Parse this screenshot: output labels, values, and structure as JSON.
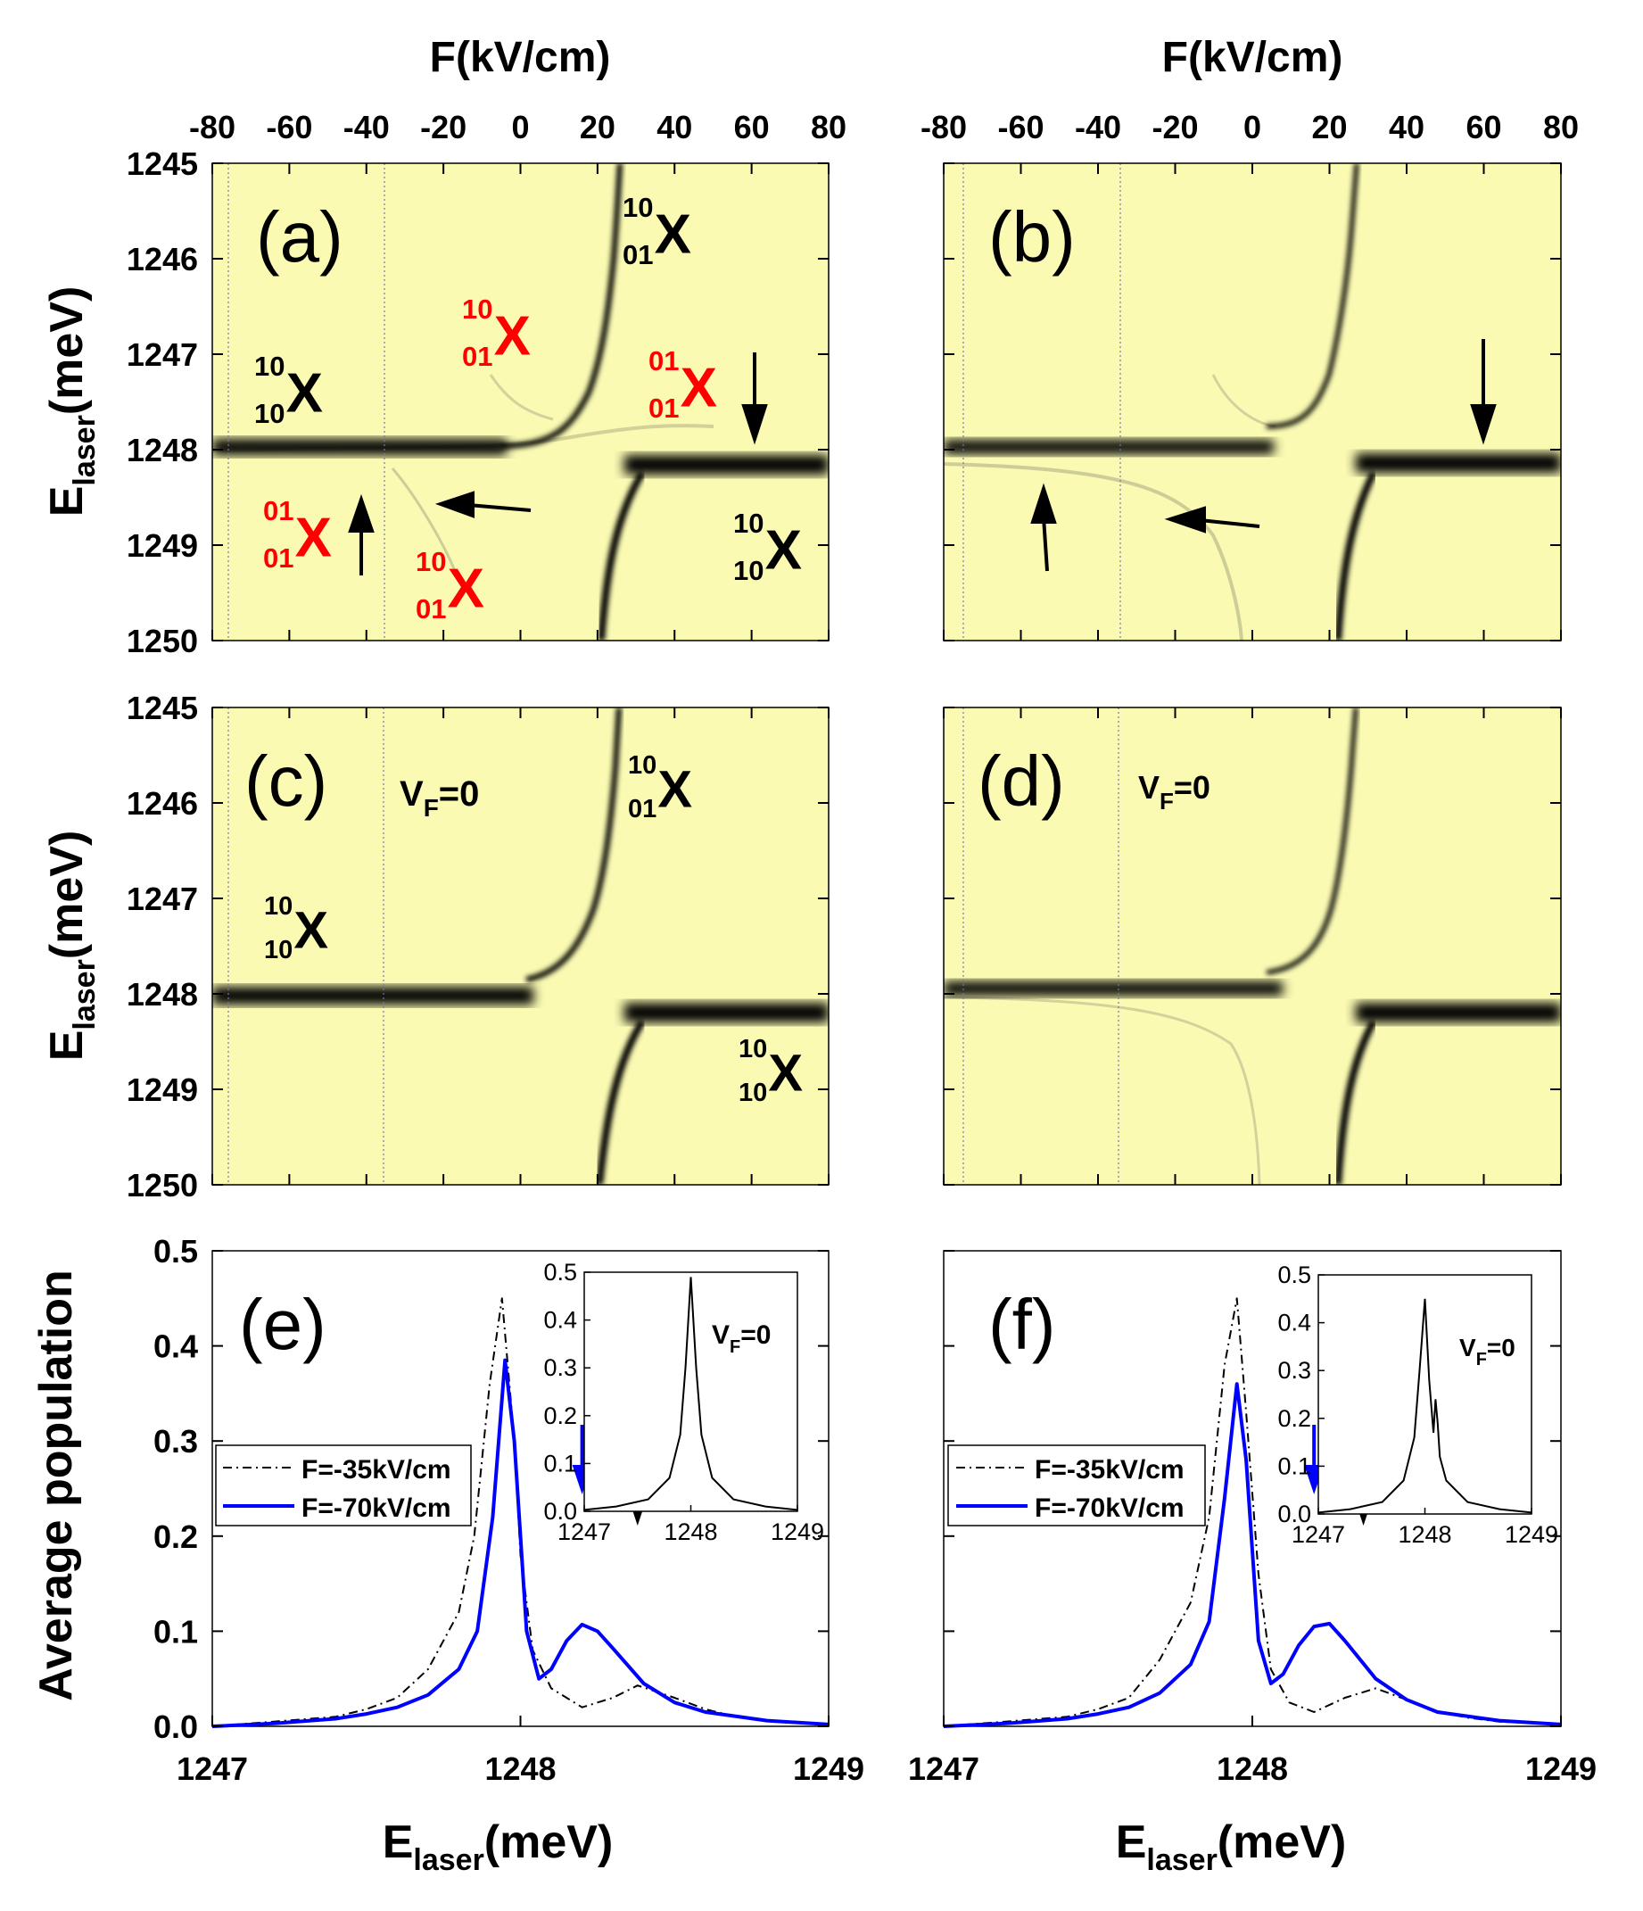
{
  "figure_kind": "multi-panel scientific figure",
  "colors": {
    "map_background": "#fafab3",
    "blue": "#0000ff",
    "black": "#000000",
    "red": "#ff0000"
  },
  "top_axis": {
    "title": "F(kV/cm)",
    "ticks": [
      "-80",
      "-60",
      "-40",
      "-20",
      "0",
      "20",
      "40",
      "60",
      "80"
    ]
  },
  "map_axis": {
    "ylabel_main": "E",
    "ylabel_sub": "laser",
    "ylabel_tail": "(meV)",
    "ticks": [
      "1245",
      "1246",
      "1247",
      "1248",
      "1249",
      "1250"
    ]
  },
  "population_axis": {
    "ylabel": "Average population",
    "y_ticks": [
      "0.0",
      "0.1",
      "0.2",
      "0.3",
      "0.4",
      "0.5"
    ],
    "x_ticks": [
      "1247",
      "1248",
      "1249"
    ],
    "xlabel_main": "E",
    "xlabel_sub": "laser",
    "xlabel_tail": "(meV)"
  },
  "panels": {
    "a": {
      "label": "(a)"
    },
    "b": {
      "label": "(b)"
    },
    "c": {
      "label": "(c)",
      "vf_main": "V",
      "vf_sub": "F",
      "vf_tail": "=0"
    },
    "d": {
      "label": "(d)",
      "vf_main": "V",
      "vf_sub": "F",
      "vf_tail": "=0"
    },
    "e": {
      "label": "(e)"
    },
    "f": {
      "label": "(f)"
    }
  },
  "state_labels": [
    {
      "panel": "a",
      "sup": "10",
      "sub": "01",
      "main": "X",
      "color": "black"
    },
    {
      "panel": "a",
      "sup": "10",
      "sub": "01",
      "main": "X",
      "color": "red"
    },
    {
      "panel": "a",
      "sup": "10",
      "sub": "10",
      "main": "X",
      "color": "black"
    },
    {
      "panel": "a",
      "sup": "01",
      "sub": "01",
      "main": "X",
      "color": "red"
    },
    {
      "panel": "a",
      "sup": "01",
      "sub": "01",
      "main": "X",
      "color": "red"
    },
    {
      "panel": "a",
      "sup": "10",
      "sub": "10",
      "main": "X",
      "color": "black"
    },
    {
      "panel": "a",
      "sup": "10",
      "sub": "01",
      "main": "X",
      "color": "red"
    },
    {
      "panel": "c",
      "sup": "10",
      "sub": "01",
      "main": "X",
      "color": "black"
    },
    {
      "panel": "c",
      "sup": "10",
      "sub": "10",
      "main": "X",
      "color": "black"
    },
    {
      "panel": "c",
      "sup": "10",
      "sub": "10",
      "main": "X",
      "color": "black"
    }
  ],
  "legend": {
    "series1": "F=-35kV/cm",
    "series2": "F=-70kV/cm"
  },
  "inset": {
    "vf_main": "V",
    "vf_sub": "F",
    "vf_tail": "=0",
    "y_ticks": [
      "0.0",
      "0.1",
      "0.2",
      "0.3",
      "0.4",
      "0.5"
    ],
    "x_ticks": [
      "1247",
      "1248",
      "1249"
    ]
  },
  "chart_data": [
    {
      "type": "heatmap",
      "panel": "(a)",
      "x_label": "F(kV/cm)",
      "x_range": [
        -80,
        80
      ],
      "y_label": "Elaser(meV)",
      "y_range": [
        1245,
        1250
      ],
      "y_inverted": true,
      "features": [
        {
          "name": "10/10 X horizontal branch",
          "from_F": -80,
          "to_F": 0,
          "E_meV": 1248.0
        },
        {
          "name": "10/10 X right branch",
          "from_F": 22,
          "to_F": 80,
          "E_meV": 1248.2
        },
        {
          "name": "10/01 X anticrossing branch",
          "crossing_F": 18,
          "E_meV_at_crossing": 1248.0
        }
      ],
      "arrows": [
        {
          "F": 60,
          "E_meV": 1247.7,
          "direction": "down"
        },
        {
          "F": -42,
          "E_meV": 1249.0,
          "direction": "up"
        },
        {
          "F": -15,
          "E_meV": 1248.6,
          "direction": "left"
        }
      ]
    },
    {
      "type": "heatmap",
      "panel": "(b)",
      "x_label": "F(kV/cm)",
      "x_range": [
        -80,
        80
      ],
      "y_label": "Elaser(meV)",
      "y_range": [
        1245,
        1250
      ],
      "y_inverted": true,
      "features": [
        {
          "name": "horizontal branch",
          "from_F": -80,
          "to_F": 0,
          "E_meV": 1248.0
        },
        {
          "name": "right branch",
          "from_F": 22,
          "to_F": 80,
          "E_meV": 1248.2
        }
      ],
      "arrows": [
        {
          "F": 60,
          "E_meV": 1247.6,
          "direction": "down"
        },
        {
          "F": -54,
          "E_meV": 1249.0,
          "direction": "up"
        },
        {
          "F": -12,
          "E_meV": 1248.6,
          "direction": "left"
        }
      ]
    },
    {
      "type": "heatmap",
      "panel": "(c)",
      "x_label": "F(kV/cm)",
      "x_range": [
        -80,
        80
      ],
      "y_label": "Elaser(meV)",
      "y_range": [
        1245,
        1250
      ],
      "y_inverted": true,
      "features": [
        {
          "name": "horizontal branch",
          "from_F": -80,
          "to_F": 0,
          "E_meV": 1248.0
        },
        {
          "name": "right branch",
          "from_F": 22,
          "to_F": 80,
          "E_meV": 1248.2
        }
      ]
    },
    {
      "type": "heatmap",
      "panel": "(d)",
      "x_label": "F(kV/cm)",
      "x_range": [
        -80,
        80
      ],
      "y_label": "Elaser(meV)",
      "y_range": [
        1245,
        1250
      ],
      "y_inverted": true,
      "features": [
        {
          "name": "horizontal branch",
          "from_F": -80,
          "to_F": 0,
          "E_meV": 1248.0
        },
        {
          "name": "right branch",
          "from_F": 22,
          "to_F": 80,
          "E_meV": 1248.2
        }
      ]
    },
    {
      "type": "line",
      "panel": "(e)",
      "xlabel": "Elaser(meV)",
      "ylabel": "Average population",
      "xlim": [
        1247,
        1249
      ],
      "ylim": [
        0,
        0.5
      ],
      "series": [
        {
          "name": "F=-35kV/cm",
          "style": "dash-dot",
          "color": "#000000",
          "x": [
            1247.0,
            1247.2,
            1247.4,
            1247.5,
            1247.6,
            1247.7,
            1247.8,
            1247.85,
            1247.9,
            1247.94,
            1247.98,
            1248.0,
            1248.04,
            1248.1,
            1248.2,
            1248.3,
            1248.38,
            1248.5,
            1248.6,
            1248.7,
            1248.8,
            1249.0
          ],
          "y": [
            0.0,
            0.005,
            0.01,
            0.018,
            0.03,
            0.06,
            0.12,
            0.2,
            0.36,
            0.45,
            0.3,
            0.18,
            0.08,
            0.04,
            0.02,
            0.03,
            0.043,
            0.03,
            0.018,
            0.01,
            0.006,
            0.002
          ]
        },
        {
          "name": "F=-70kV/cm",
          "style": "solid",
          "color": "#0000ff",
          "x": [
            1247.0,
            1247.2,
            1247.4,
            1247.5,
            1247.6,
            1247.7,
            1247.8,
            1247.86,
            1247.91,
            1247.95,
            1247.98,
            1248.02,
            1248.06,
            1248.1,
            1248.15,
            1248.2,
            1248.25,
            1248.3,
            1248.4,
            1248.5,
            1248.6,
            1248.8,
            1249.0
          ],
          "y": [
            0.0,
            0.003,
            0.008,
            0.013,
            0.02,
            0.033,
            0.06,
            0.1,
            0.22,
            0.385,
            0.3,
            0.1,
            0.05,
            0.06,
            0.09,
            0.107,
            0.1,
            0.082,
            0.045,
            0.025,
            0.015,
            0.006,
            0.002
          ]
        }
      ],
      "arrows": [
        {
          "x": 1248.2,
          "color": "blue"
        },
        {
          "x": 1248.38,
          "color": "black"
        }
      ],
      "inset": {
        "annotation": "VF=0",
        "xlim": [
          1247,
          1249
        ],
        "ylim": [
          0,
          0.5
        ],
        "x": [
          1247.0,
          1247.3,
          1247.6,
          1247.8,
          1247.9,
          1247.95,
          1248.0,
          1248.05,
          1248.1,
          1248.2,
          1248.4,
          1248.7,
          1249.0
        ],
        "y": [
          0.003,
          0.01,
          0.025,
          0.07,
          0.16,
          0.3,
          0.49,
          0.3,
          0.16,
          0.07,
          0.025,
          0.01,
          0.003
        ]
      }
    },
    {
      "type": "line",
      "panel": "(f)",
      "xlabel": "Elaser(meV)",
      "ylabel": "Average population",
      "xlim": [
        1247,
        1249
      ],
      "ylim": [
        0,
        0.5
      ],
      "series": [
        {
          "name": "F=-35kV/cm",
          "style": "dash-dot",
          "color": "#000000",
          "x": [
            1247.0,
            1247.2,
            1247.4,
            1247.5,
            1247.6,
            1247.7,
            1247.8,
            1247.86,
            1247.91,
            1247.95,
            1247.98,
            1248.02,
            1248.06,
            1248.12,
            1248.2,
            1248.3,
            1248.4,
            1248.5,
            1248.6,
            1248.7,
            1248.8,
            1249.0
          ],
          "y": [
            0.0,
            0.005,
            0.01,
            0.018,
            0.03,
            0.07,
            0.13,
            0.22,
            0.38,
            0.45,
            0.33,
            0.16,
            0.06,
            0.025,
            0.015,
            0.03,
            0.04,
            0.028,
            0.015,
            0.009,
            0.005,
            0.002
          ]
        },
        {
          "name": "F=-70kV/cm",
          "style": "solid",
          "color": "#0000ff",
          "x": [
            1247.0,
            1247.2,
            1247.4,
            1247.5,
            1247.6,
            1247.7,
            1247.8,
            1247.86,
            1247.91,
            1247.95,
            1247.98,
            1248.02,
            1248.06,
            1248.1,
            1248.15,
            1248.2,
            1248.25,
            1248.3,
            1248.4,
            1248.5,
            1248.6,
            1248.8,
            1249.0
          ],
          "y": [
            0.0,
            0.003,
            0.008,
            0.013,
            0.02,
            0.035,
            0.065,
            0.11,
            0.24,
            0.36,
            0.28,
            0.09,
            0.045,
            0.055,
            0.085,
            0.105,
            0.108,
            0.09,
            0.05,
            0.028,
            0.015,
            0.006,
            0.002
          ]
        }
      ],
      "arrows": [
        {
          "x": 1248.2,
          "color": "blue"
        },
        {
          "x": 1248.36,
          "color": "black"
        }
      ],
      "inset": {
        "annotation": "VF=0",
        "xlim": [
          1247,
          1249
        ],
        "ylim": [
          0,
          0.5
        ],
        "x": [
          1247.0,
          1247.3,
          1247.6,
          1247.8,
          1247.9,
          1247.95,
          1248.0,
          1248.04,
          1248.08,
          1248.1,
          1248.12,
          1248.14,
          1248.2,
          1248.4,
          1248.7,
          1249.0
        ],
        "y": [
          0.003,
          0.01,
          0.025,
          0.07,
          0.16,
          0.3,
          0.45,
          0.28,
          0.17,
          0.24,
          0.19,
          0.12,
          0.07,
          0.025,
          0.01,
          0.003
        ]
      }
    }
  ]
}
